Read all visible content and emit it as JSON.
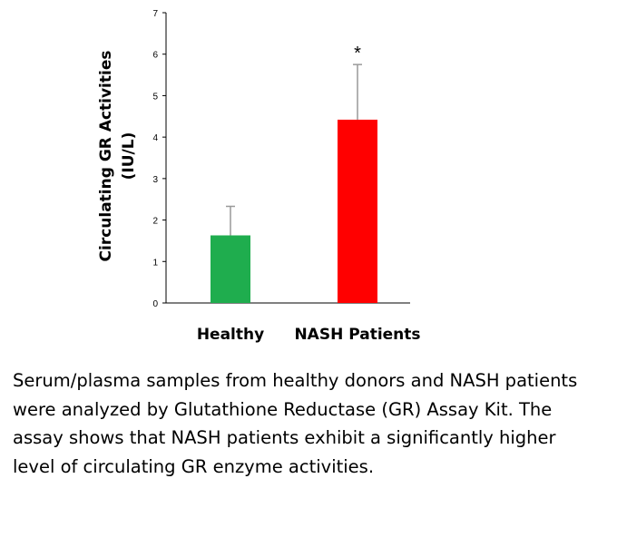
{
  "chart_data": {
    "type": "bar",
    "categories": [
      "Healthy",
      "NASH Patients"
    ],
    "values": [
      1.63,
      4.42
    ],
    "errors": [
      0.7,
      1.33
    ],
    "colors": [
      "#1fad4e",
      "#ff0000"
    ],
    "significance": [
      "",
      "*"
    ],
    "ylabel_line1": "Circulating GR Activities",
    "ylabel_line2": "(IU/L)",
    "ylim": [
      0,
      7
    ],
    "yticks": [
      "0",
      "1",
      "2",
      "3",
      "4",
      "5",
      "6",
      "7"
    ],
    "grid": false
  },
  "caption": "Serum/plasma samples from healthy donors and NASH patients were analyzed by Glutathione Reductase (GR) Assay Kit.  The assay shows that NASH patients exhibit a significantly higher level of circulating GR enzyme activities."
}
